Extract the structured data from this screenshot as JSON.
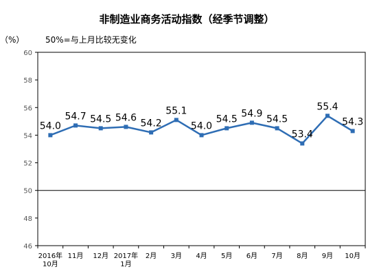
{
  "chart_data": {
    "type": "line",
    "title": "非制造业商务活动指数（经季节调整）",
    "unit_label": "（%）",
    "annotation": "50%=与上月比较无变化",
    "categories": [
      [
        "2016年",
        "10月"
      ],
      [
        "11月"
      ],
      [
        "12月"
      ],
      [
        "2017年",
        "1月"
      ],
      [
        "2月"
      ],
      [
        "3月"
      ],
      [
        "4月"
      ],
      [
        "5月"
      ],
      [
        "6月"
      ],
      [
        "7月"
      ],
      [
        "8月"
      ],
      [
        "9月"
      ],
      [
        "10月"
      ]
    ],
    "series": [
      {
        "values": [
          54.0,
          54.7,
          54.5,
          54.6,
          54.2,
          55.1,
          54.0,
          54.5,
          54.9,
          54.5,
          53.4,
          55.4,
          54.3
        ],
        "labels": [
          "54.0",
          "54.7",
          "54.5",
          "54.6",
          "54.2",
          "55.1",
          "54.0",
          "54.5",
          "54.9",
          "54.5",
          "53.4",
          "55.4",
          "54.3"
        ],
        "color": "#2e6db4"
      }
    ],
    "y_ticks": [
      46,
      48,
      50,
      52,
      54,
      56,
      58,
      60
    ],
    "ylim": [
      46,
      60
    ],
    "reference_line": 50,
    "grid": false,
    "legend": "none",
    "colors": {
      "axis": "#000000",
      "tick_text": "#555555",
      "line": "#2e6db4"
    }
  }
}
